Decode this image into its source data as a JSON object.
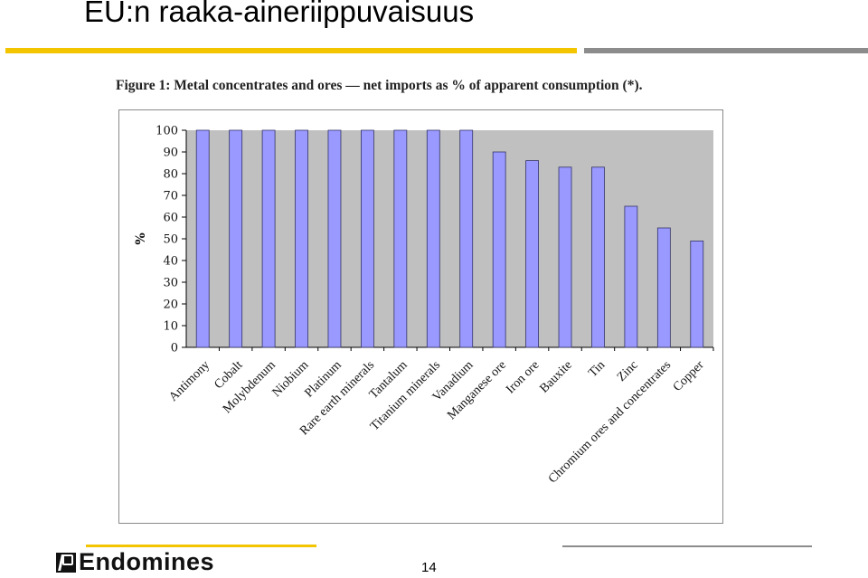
{
  "slide": {
    "title": "EU:n raaka-aineriippuvaisuus",
    "page_number": "14",
    "logo_text": "Endomines",
    "colors": {
      "rule_primary": "#f2c500",
      "rule_secondary": "#8c8c8c",
      "plot_background": "#c0c0c0",
      "bar_fill": "#9999ff",
      "bar_stroke": "#333366"
    }
  },
  "chart_data": {
    "type": "bar",
    "title": "Figure 1: Metal concentrates and ores — net imports as % of apparent consumption (*).",
    "xlabel": "",
    "ylabel": "%",
    "ylim": [
      0,
      100
    ],
    "yticks": [
      "0",
      "10",
      "20",
      "30",
      "40",
      "50",
      "60",
      "70",
      "80",
      "90",
      "100"
    ],
    "grid": false,
    "legend": "none",
    "categories": [
      "Antimony",
      "Cobalt",
      "Molybdenum",
      "Niobium",
      "Platinum",
      "Rare earth minerals",
      "Tantalum",
      "Titanium minerals",
      "Vanadium",
      "Manganese ore",
      "Iron ore",
      "Bauxite",
      "Tin",
      "Zinc",
      "Chromium ores and concentrates",
      "Copper"
    ],
    "values": [
      100,
      100,
      100,
      100,
      100,
      100,
      100,
      100,
      100,
      90,
      86,
      83,
      83,
      65,
      55,
      49
    ]
  }
}
